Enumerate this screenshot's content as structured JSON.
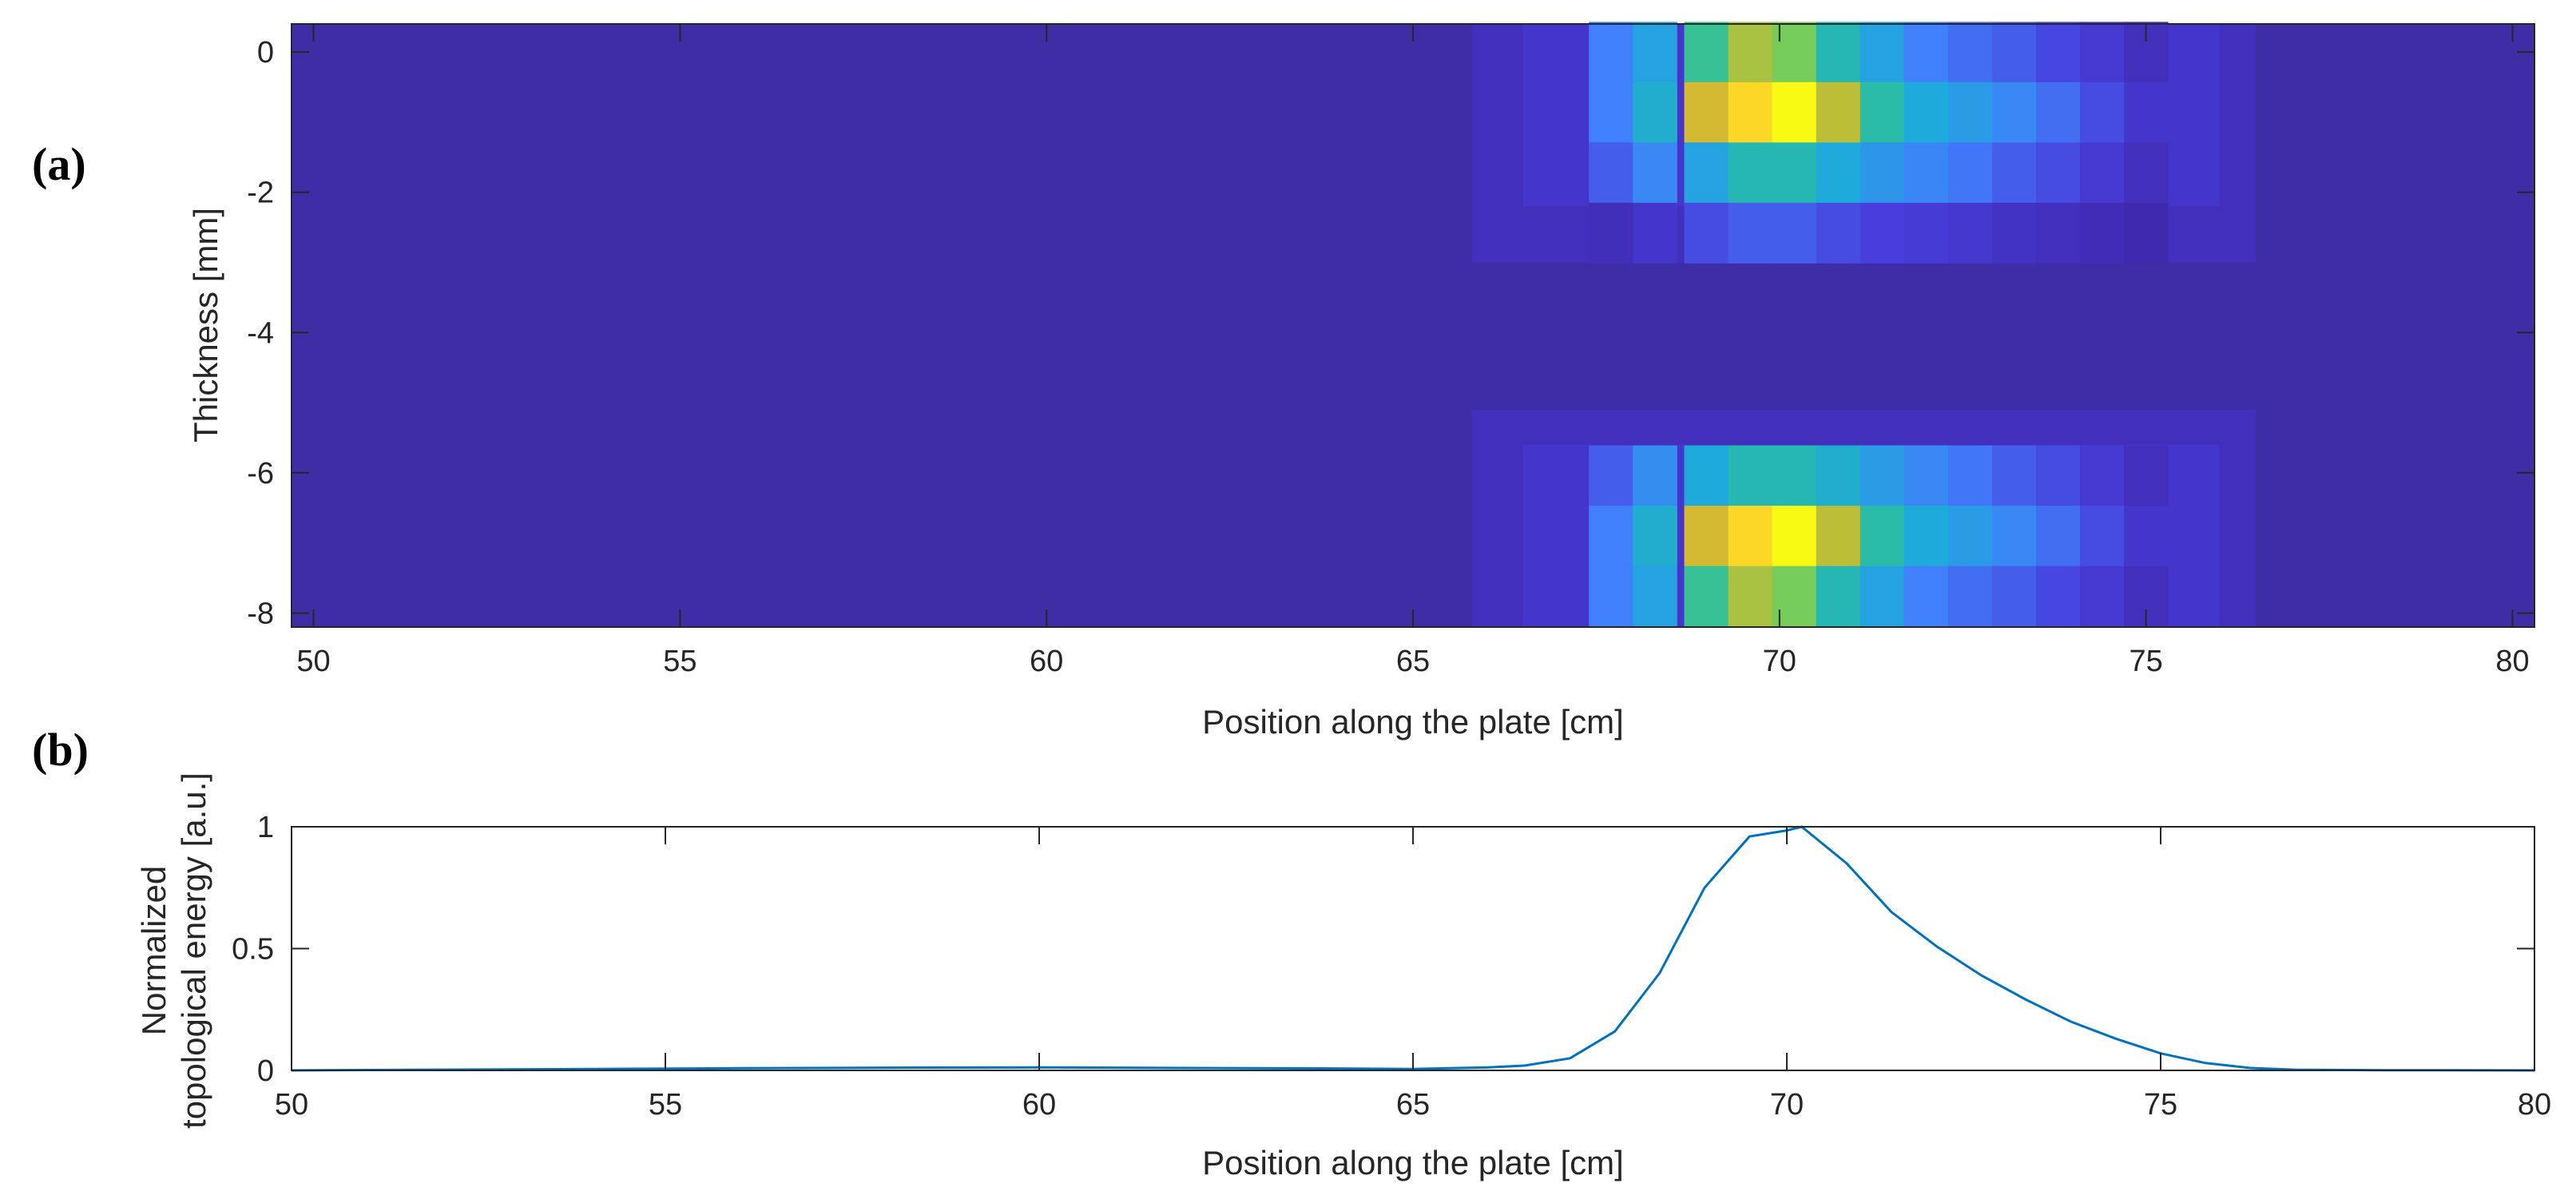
{
  "chart_data": [
    {
      "panel_label": "(a)",
      "type": "heatmap",
      "xlabel": "Position along the plate [cm]",
      "ylabel": "Thickness [mm]",
      "xlim": [
        49.7,
        80.3
      ],
      "ylim": [
        -8.2,
        0.4
      ],
      "xticks": [
        50,
        55,
        60,
        65,
        70,
        75,
        80
      ],
      "yticks": [
        0,
        -2,
        -4,
        -6,
        -8
      ],
      "xtick_labels": [
        "50",
        "55",
        "60",
        "65",
        "70",
        "75",
        "80"
      ],
      "ytick_labels": [
        "0",
        "-2",
        "-4",
        "-6",
        "-8"
      ],
      "colormap": "parula",
      "x_centers": [
        67.7,
        68.3,
        69.0,
        69.6,
        70.2,
        70.8,
        71.4,
        72.0,
        72.6,
        73.2,
        73.8,
        74.4,
        75.0
      ],
      "y_centers": [
        0.0,
        -0.86,
        -1.72,
        -2.58,
        -6.04,
        -6.9,
        -7.76
      ],
      "z": [
        [
          0.3,
          0.42,
          0.62,
          0.78,
          0.72,
          0.55,
          0.42,
          0.3,
          0.26,
          0.22,
          0.17,
          0.12,
          0.06
        ],
        [
          0.3,
          0.48,
          0.83,
          0.95,
          1.0,
          0.8,
          0.58,
          0.45,
          0.4,
          0.33,
          0.26,
          0.18,
          0.1
        ],
        [
          0.22,
          0.33,
          0.42,
          0.55,
          0.55,
          0.45,
          0.38,
          0.32,
          0.28,
          0.22,
          0.18,
          0.12,
          0.06
        ],
        [
          0.05,
          0.1,
          0.18,
          0.22,
          0.22,
          0.18,
          0.15,
          0.13,
          0.11,
          0.08,
          0.06,
          0.04,
          0.02
        ],
        [
          0.22,
          0.35,
          0.45,
          0.55,
          0.55,
          0.48,
          0.4,
          0.33,
          0.28,
          0.22,
          0.18,
          0.12,
          0.06
        ],
        [
          0.3,
          0.48,
          0.83,
          0.95,
          1.0,
          0.8,
          0.58,
          0.45,
          0.4,
          0.33,
          0.26,
          0.18,
          0.1
        ],
        [
          0.3,
          0.42,
          0.62,
          0.78,
          0.72,
          0.55,
          0.42,
          0.3,
          0.26,
          0.22,
          0.17,
          0.12,
          0.06
        ]
      ]
    },
    {
      "panel_label": "(b)",
      "type": "line",
      "xlabel": "Position along the plate [cm]",
      "ylabel_lines": [
        "Normalized",
        "topological energy [a.u.]"
      ],
      "xlim": [
        50,
        80
      ],
      "ylim": [
        0,
        1
      ],
      "xticks": [
        50,
        55,
        60,
        65,
        70,
        75,
        80
      ],
      "yticks": [
        0,
        0.5,
        1
      ],
      "xtick_labels": [
        "50",
        "55",
        "60",
        "65",
        "70",
        "75",
        "80"
      ],
      "ytick_labels": [
        "0",
        "0.5",
        "1"
      ],
      "series": [
        {
          "name": "topological energy",
          "color": "#0072BD",
          "x": [
            50,
            52,
            54,
            56,
            58,
            60,
            62,
            64,
            65,
            66,
            66.5,
            67.1,
            67.7,
            68.3,
            68.9,
            69.5,
            70.0,
            70.2,
            70.8,
            71.4,
            72.0,
            72.6,
            73.2,
            73.8,
            74.4,
            75.0,
            75.6,
            76.2,
            76.8,
            78,
            80
          ],
          "y": [
            0,
            0.003,
            0.006,
            0.009,
            0.011,
            0.012,
            0.01,
            0.008,
            0.006,
            0.012,
            0.02,
            0.05,
            0.16,
            0.4,
            0.75,
            0.96,
            0.985,
            1.0,
            0.85,
            0.65,
            0.51,
            0.39,
            0.29,
            0.2,
            0.13,
            0.07,
            0.03,
            0.01,
            0.003,
            0.001,
            0
          ]
        }
      ]
    }
  ]
}
